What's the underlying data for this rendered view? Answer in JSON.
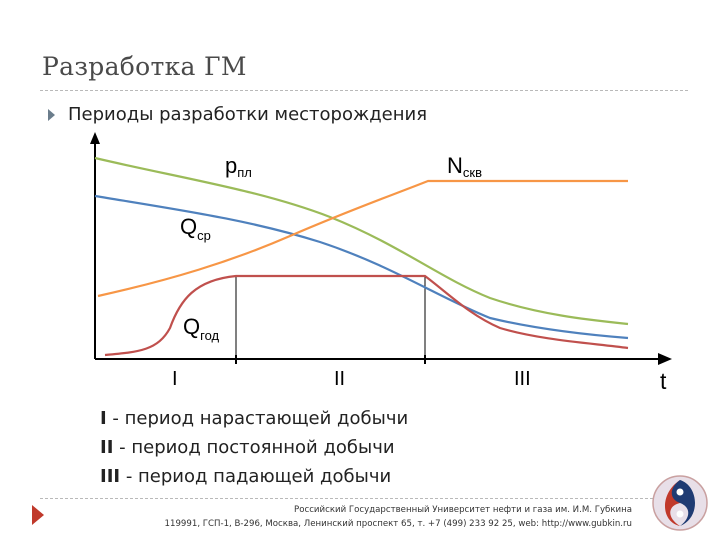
{
  "slide": {
    "title": "Разработка ГМ",
    "bullet": "Периоды разработки месторождения"
  },
  "diagram": {
    "curve_labels": {
      "p_main": "р",
      "p_sub": "пл",
      "n_main": "N",
      "n_sub": "скв",
      "qsr_main": "Q",
      "qsr_sub": "ср",
      "qgod_main": "Q",
      "qgod_sub": "год"
    },
    "period_labels": [
      "I",
      "II",
      "III"
    ],
    "t_label": "t",
    "colors": {
      "p_pl": "#9bbb59",
      "n_skv": "#f79646",
      "q_sr": "#4f81bd",
      "q_god": "#c0504d",
      "axis": "#000000"
    }
  },
  "legend": [
    {
      "num": "I",
      "text": " - период нарастающей добычи"
    },
    {
      "num": "II",
      "text": " - период постоянной добычи"
    },
    {
      "num": "III",
      "text": " - период падающей добычи"
    }
  ],
  "footer": {
    "line1": "Российский Государственный Университет нефти и газа им. И.М. Губкина",
    "line2": "119991, ГСП-1, В-296, Москва, Ленинский проспект 65, т. +7 (499) 233 92 25, web: http://www.gubkin.ru"
  }
}
